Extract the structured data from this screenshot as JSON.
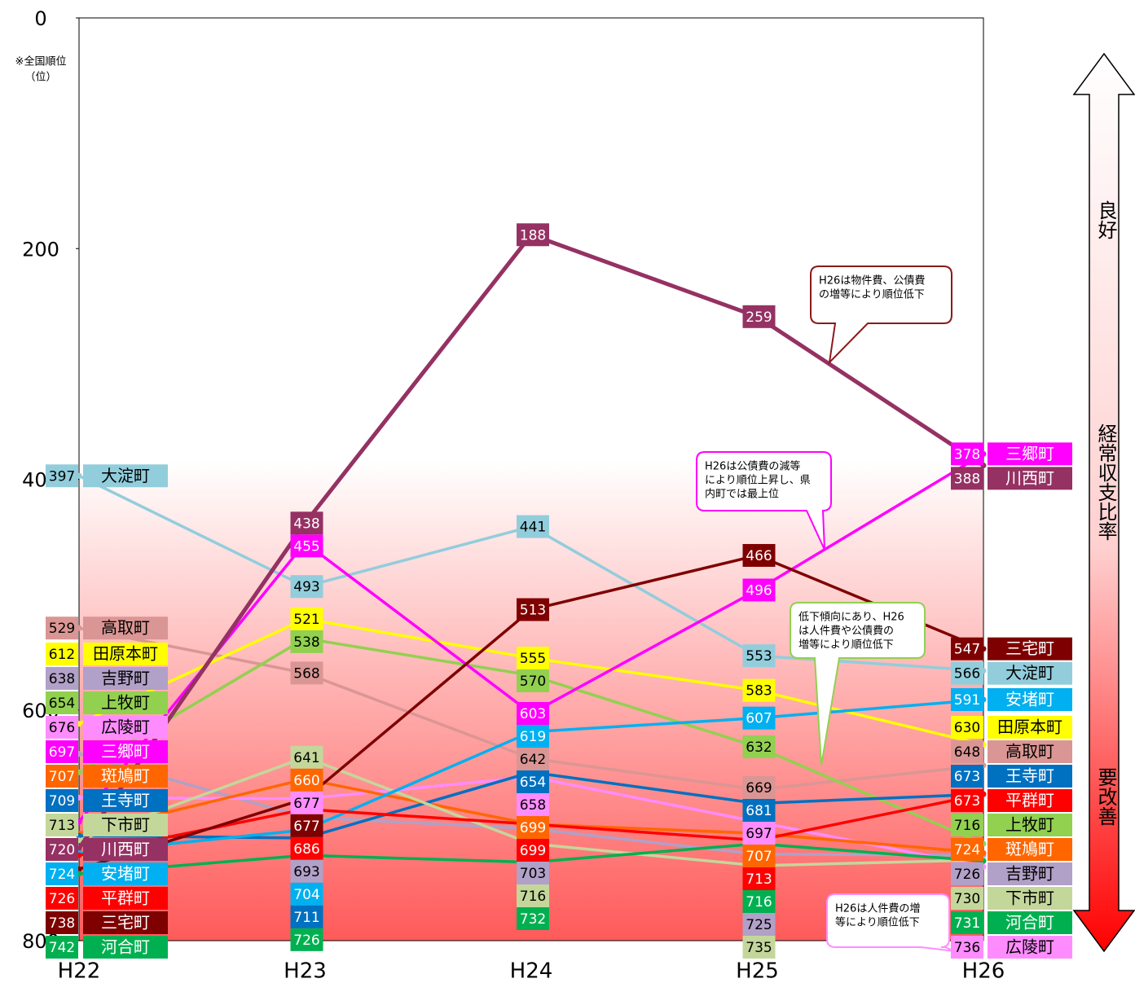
{
  "chart_data": {
    "type": "line",
    "y_label": [
      "※全国順位",
      "（位）"
    ],
    "categories": [
      "H22",
      "H23",
      "H24",
      "H25",
      "H26"
    ],
    "ylim": [
      0,
      800
    ],
    "yticks": [
      0,
      200,
      400,
      600,
      800
    ],
    "y_inverted": true,
    "series": [
      {
        "name": "大淀町",
        "color": "#92cddc",
        "values": [
          397,
          493,
          441,
          553,
          566
        ]
      },
      {
        "name": "高取町",
        "color": "#da9694",
        "values": [
          529,
          568,
          642,
          669,
          648
        ]
      },
      {
        "name": "田原本町",
        "color": "#ffff00",
        "values": [
          612,
          521,
          555,
          583,
          630
        ]
      },
      {
        "name": "吉野町",
        "color": "#b1a0c7",
        "values": [
          638,
          693,
          703,
          725,
          726
        ]
      },
      {
        "name": "上牧町",
        "color": "#92d050",
        "values": [
          654,
          538,
          570,
          632,
          716
        ]
      },
      {
        "name": "広陵町",
        "color": "#ff8cff",
        "values": [
          676,
          677,
          658,
          697,
          736
        ]
      },
      {
        "name": "三郷町",
        "color": "#ff00ff",
        "values": [
          697,
          455,
          603,
          496,
          378
        ]
      },
      {
        "name": "斑鳩町",
        "color": "#ff6600",
        "values": [
          707,
          660,
          699,
          707,
          724
        ]
      },
      {
        "name": "王寺町",
        "color": "#0070c0",
        "values": [
          709,
          711,
          654,
          681,
          673
        ]
      },
      {
        "name": "下市町",
        "color": "#c4d79b",
        "values": [
          713,
          641,
          716,
          735,
          730
        ]
      },
      {
        "name": "川西町",
        "color": "#953163",
        "values": [
          720,
          438,
          188,
          259,
          388
        ]
      },
      {
        "name": "安堵町",
        "color": "#00b0f0",
        "values": [
          724,
          704,
          619,
          607,
          591
        ]
      },
      {
        "name": "平群町",
        "color": "#ff0000",
        "values": [
          726,
          686,
          699,
          713,
          673
        ]
      },
      {
        "name": "三宅町",
        "color": "#7f0000",
        "values": [
          738,
          677,
          513,
          466,
          547
        ]
      },
      {
        "name": "河合町",
        "color": "#00b050",
        "values": [
          742,
          726,
          732,
          716,
          731
        ]
      }
    ],
    "annotations": [
      {
        "lines": [
          "H26は物件費、公債費",
          "の増等により順位低下"
        ],
        "color": "#8b1a1a"
      },
      {
        "lines": [
          "H26は公債費の減等",
          "により順位上昇し、県",
          "内町では最上位"
        ],
        "color": "#ff00ff"
      },
      {
        "lines": [
          "低下傾向にあり、H26",
          "は人件費や公債費の",
          "増等により順位低下"
        ],
        "color": "#92d050"
      },
      {
        "lines": [
          "H26は人件費の増",
          "等により順位低下"
        ],
        "color": "#ff8cff"
      }
    ],
    "side_labels": [
      "良好",
      "経常収支比率",
      "要改善"
    ]
  }
}
